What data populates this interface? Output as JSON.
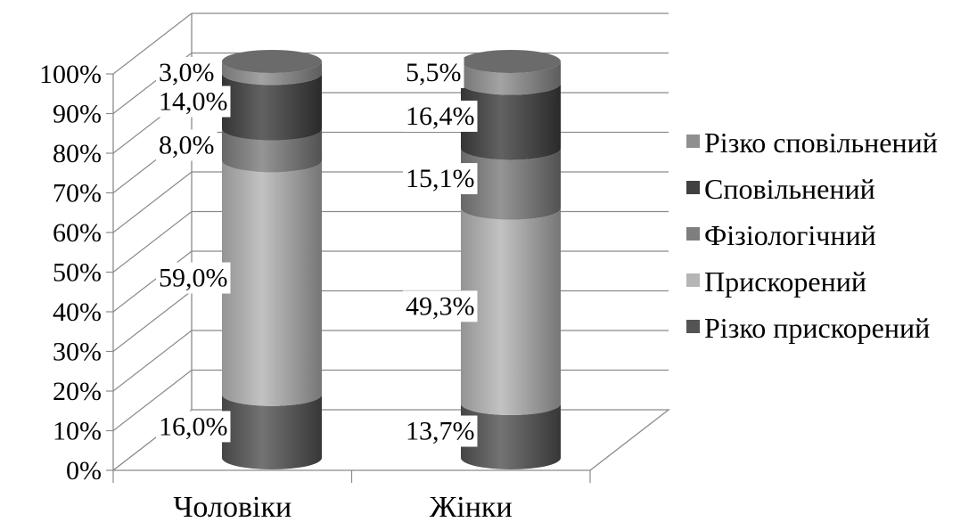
{
  "chart_data": {
    "type": "bar",
    "stacked": true,
    "style": "3d-cylinder",
    "title": "",
    "xlabel": "",
    "ylabel": "",
    "ylim": [
      0,
      100
    ],
    "yticks": [
      "0%",
      "10%",
      "20%",
      "30%",
      "40%",
      "50%",
      "60%",
      "70%",
      "80%",
      "90%",
      "100%"
    ],
    "categories": [
      "Чоловіки",
      "Жінки"
    ],
    "grid": true,
    "legend_position": "right",
    "series": [
      {
        "name": "Різко прискорений",
        "values": [
          16.0,
          13.7
        ],
        "labels": [
          "16,0%",
          "13,7%"
        ],
        "color": "#545454"
      },
      {
        "name": "Прискорений",
        "values": [
          59.0,
          49.3
        ],
        "labels": [
          "59,0%",
          "49,3%"
        ],
        "color": "#b5b5b5"
      },
      {
        "name": "Фізіологічний",
        "values": [
          8.0,
          15.1
        ],
        "labels": [
          "8,0%",
          "15,1%"
        ],
        "color": "#7e7e7e"
      },
      {
        "name": "Сповільнений",
        "values": [
          14.0,
          16.4
        ],
        "labels": [
          "14,0%",
          "16,4%"
        ],
        "color": "#404040"
      },
      {
        "name": "Різко сповільнений",
        "values": [
          3.0,
          5.5
        ],
        "labels": [
          "3,0%",
          "5,5%"
        ],
        "color": "#8f8f8f"
      }
    ]
  }
}
